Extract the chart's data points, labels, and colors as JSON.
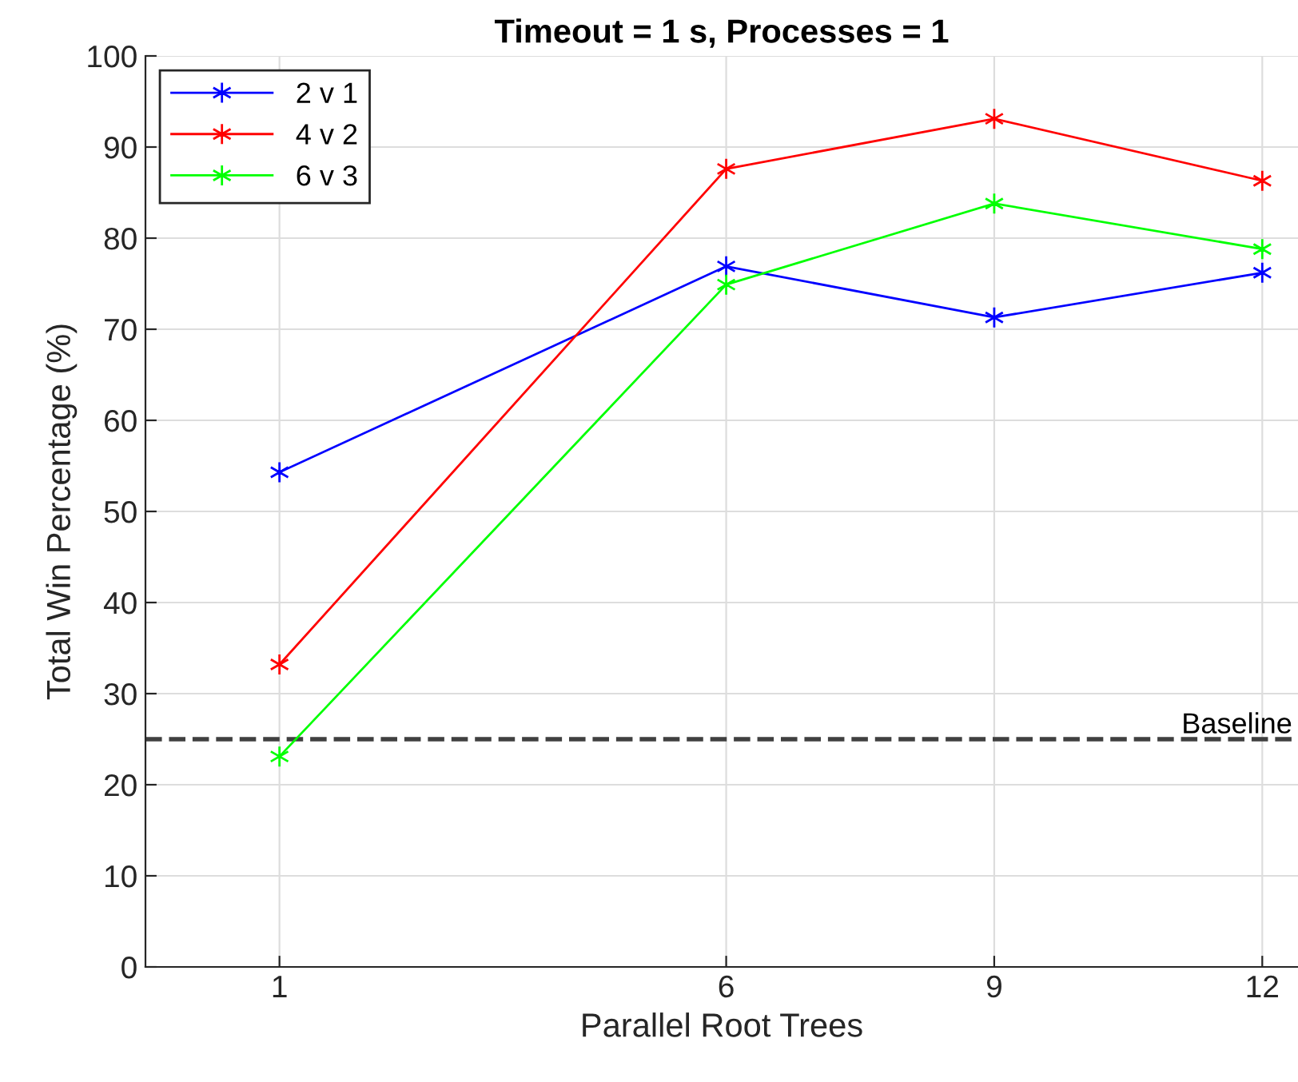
{
  "chart_data": {
    "type": "line",
    "title": "Timeout = 1 s, Processes = 1",
    "xlabel": "Parallel Root Trees",
    "ylabel": "Total Win Percentage (%)",
    "x": [
      1,
      6,
      9,
      12
    ],
    "series": [
      {
        "name": "2 v 1",
        "color": "#0000ff",
        "values": [
          54.3,
          76.9,
          71.3,
          76.2
        ]
      },
      {
        "name": "4 v 2",
        "color": "#ff0000",
        "values": [
          33.2,
          87.6,
          93.1,
          86.3
        ]
      },
      {
        "name": "6 v 3",
        "color": "#00ff00",
        "values": [
          23.1,
          74.9,
          83.8,
          78.8
        ]
      }
    ],
    "xlim": [
      -0.5,
      12.4
    ],
    "xticks": [
      1,
      6,
      9,
      12
    ],
    "ylim": [
      0,
      100
    ],
    "yticks": [
      0,
      10,
      20,
      30,
      40,
      50,
      60,
      70,
      80,
      90,
      100
    ],
    "ref_lines": [
      {
        "axis": "y",
        "value": 25,
        "label": "Baseline",
        "color": "#404040",
        "line_style": "dashed"
      }
    ],
    "grid": true,
    "legend": "top left",
    "marker": "cross",
    "line_style": "solid"
  }
}
